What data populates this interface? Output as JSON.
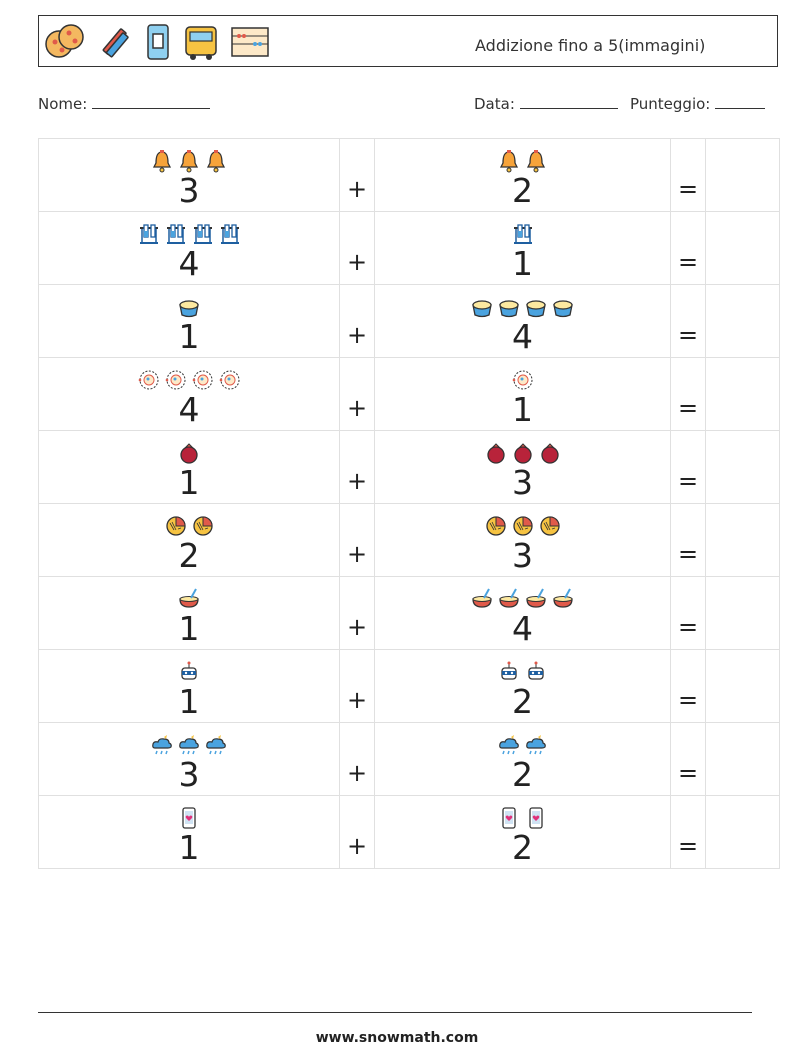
{
  "header": {
    "title": "Addizione fino a 5(immagini)",
    "icons": [
      "cookies-icon",
      "crayons-icon",
      "sharpener-icon",
      "school-bus-icon",
      "abacus-icon"
    ]
  },
  "info": {
    "name_label": "Nome:",
    "date_label": "Data:",
    "score_label": "Punteggio:"
  },
  "problems": [
    {
      "a": "3",
      "b": "2",
      "icon": "bell-icon",
      "plus": "+",
      "equals": "="
    },
    {
      "a": "4",
      "b": "1",
      "icon": "test-tube-rack-icon",
      "plus": "+",
      "equals": "="
    },
    {
      "a": "1",
      "b": "4",
      "icon": "bucket-icon",
      "plus": "+",
      "equals": "="
    },
    {
      "a": "4",
      "b": "1",
      "icon": "pizza-icon",
      "plus": "+",
      "equals": "="
    },
    {
      "a": "1",
      "b": "3",
      "icon": "pomegranate-icon",
      "plus": "+",
      "equals": "="
    },
    {
      "a": "2",
      "b": "3",
      "icon": "fruit-slice-icon",
      "plus": "+",
      "equals": "="
    },
    {
      "a": "1",
      "b": "4",
      "icon": "bowl-icon",
      "plus": "+",
      "equals": "="
    },
    {
      "a": "1",
      "b": "2",
      "icon": "robot-icon",
      "plus": "+",
      "equals": "="
    },
    {
      "a": "3",
      "b": "2",
      "icon": "storm-cloud-icon",
      "plus": "+",
      "equals": "="
    },
    {
      "a": "1",
      "b": "2",
      "icon": "phone-heart-icon",
      "plus": "+",
      "equals": "="
    }
  ],
  "footer": {
    "site": "www.snowmath.com"
  }
}
